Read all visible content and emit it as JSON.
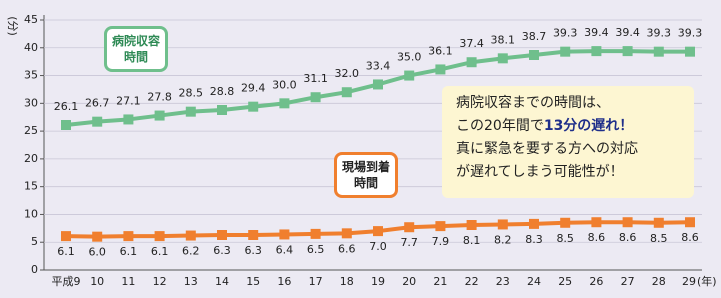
{
  "chart_data": {
    "type": "line",
    "y_unit": "(分)",
    "x_unit": "(年)",
    "categories": [
      "平成9",
      "10",
      "11",
      "12",
      "13",
      "14",
      "15",
      "16",
      "17",
      "18",
      "19",
      "20",
      "21",
      "22",
      "23",
      "24",
      "25",
      "26",
      "27",
      "28",
      "29"
    ],
    "series": [
      {
        "name": "病院収容時間",
        "color": "#6fbf8c",
        "values": [
          26.1,
          26.7,
          27.1,
          27.8,
          28.5,
          28.8,
          29.4,
          30.0,
          31.1,
          32.0,
          33.4,
          35.0,
          36.1,
          37.4,
          38.1,
          38.7,
          39.3,
          39.4,
          39.4,
          39.3,
          39.3
        ],
        "value_labels": [
          "26.1",
          "26.7",
          "27.1",
          "27.8",
          "28.5",
          "28.8",
          "29.4",
          "30.0",
          "31.1",
          "32.0",
          "33.4",
          "35.0",
          "36.1",
          "37.4",
          "38.1",
          "38.7",
          "39.3",
          "39.4",
          "39.4",
          "39.3",
          "39.3"
        ]
      },
      {
        "name": "現場到着時間",
        "color": "#f07f2e",
        "values": [
          6.1,
          6.0,
          6.1,
          6.1,
          6.2,
          6.3,
          6.3,
          6.4,
          6.5,
          6.6,
          7.0,
          7.7,
          7.9,
          8.1,
          8.2,
          8.3,
          8.5,
          8.6,
          8.6,
          8.5,
          8.6
        ],
        "value_labels": [
          "6.1",
          "6.0",
          "6.1",
          "6.1",
          "6.2",
          "6.3",
          "6.3",
          "6.4",
          "6.5",
          "6.6",
          "7.0",
          "7.7",
          "7.9",
          "8.1",
          "8.2",
          "8.3",
          "8.5",
          "8.6",
          "8.6",
          "8.5",
          "8.6"
        ]
      }
    ],
    "ylim": [
      0,
      45
    ],
    "yticks": [
      0,
      5,
      10,
      15,
      20,
      25,
      30,
      35,
      40,
      45
    ],
    "grid": true,
    "annotation": [
      "病院収容までの時間は、",
      "この20年間で",
      "13分の遅れ！",
      "真に緊急を要する方への対応",
      "が遅れてしまう可能性が！"
    ]
  }
}
